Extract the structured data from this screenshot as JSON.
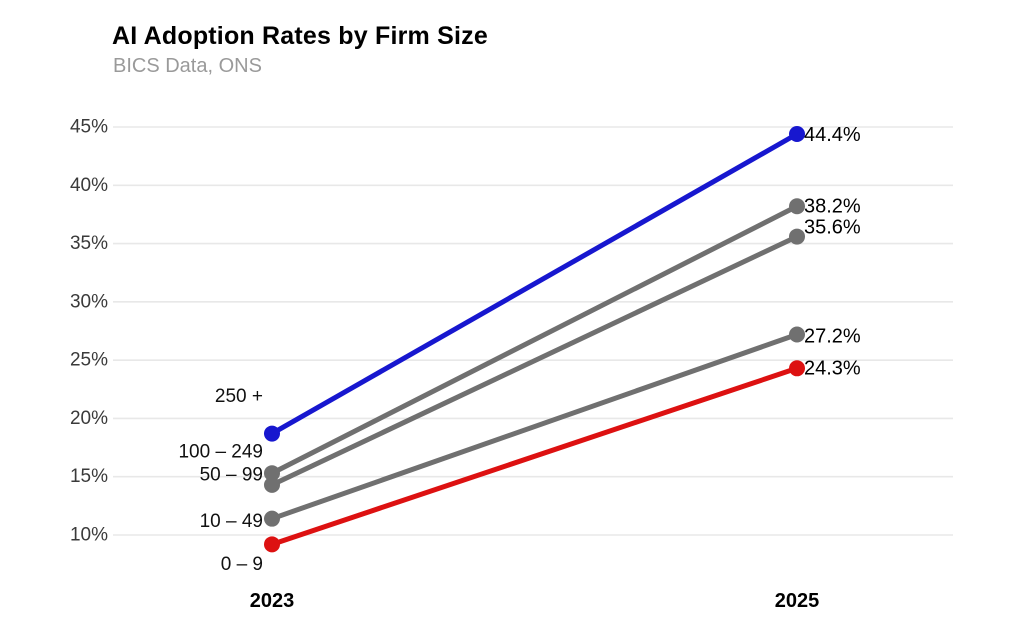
{
  "chart_data": {
    "type": "line",
    "variant": "slope-chart",
    "title": "AI Adoption Rates by Firm Size",
    "subtitle": "BICS Data, ONS",
    "x_labels": [
      "2023",
      "2025"
    ],
    "yticks": [
      10,
      15,
      20,
      25,
      30,
      35,
      40,
      45
    ],
    "ytick_labels": [
      "10%",
      "15%",
      "20%",
      "25%",
      "30%",
      "35%",
      "40%",
      "45%"
    ],
    "ylim": [
      8,
      46
    ],
    "grid": true,
    "legend_position": "none",
    "colors": {
      "blue": "#1717cf",
      "gray": "#707070",
      "red": "#dd1111",
      "gridline": "#e8e8e8",
      "tick_text": "#3a3a3a",
      "label_text": "#000000",
      "subtitle_text": "#9a9a9a",
      "background": "#ffffff"
    },
    "series": [
      {
        "name": "250 +",
        "color": "#1717cf",
        "values": [
          18.7,
          44.4
        ],
        "end_label": "44.4%",
        "name_dy": -37,
        "end_dy": 1
      },
      {
        "name": "100 – 249",
        "color": "#707070",
        "values": [
          15.3,
          38.2
        ],
        "end_label": "38.2%",
        "name_dy": -21,
        "end_dy": 0
      },
      {
        "name": "50 – 99",
        "color": "#707070",
        "values": [
          14.3,
          35.6
        ],
        "end_label": "35.6%",
        "name_dy": -10,
        "end_dy": -9
      },
      {
        "name": "10 – 49",
        "color": "#707070",
        "values": [
          11.4,
          27.2
        ],
        "end_label": "27.2%",
        "name_dy": 3,
        "end_dy": 2
      },
      {
        "name": "0 – 9",
        "color": "#dd1111",
        "values": [
          9.2,
          24.3
        ],
        "end_label": "24.3%",
        "name_dy": 20,
        "end_dy": 0
      }
    ]
  }
}
